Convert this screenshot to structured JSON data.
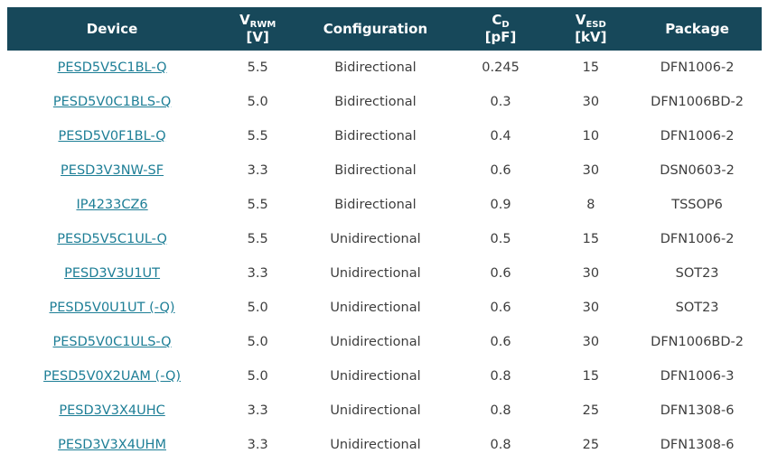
{
  "colors": {
    "header_bg": "#17485a",
    "header_text": "#ffffff",
    "link": "#1d7e96",
    "body_text": "#3d3d3d",
    "row_bg": "#ffffff"
  },
  "table": {
    "columns": {
      "device": {
        "label": "Device"
      },
      "vrwm": {
        "symbol": "V",
        "sub": "RWM",
        "unit": "[V]"
      },
      "configuration": {
        "label": "Configuration"
      },
      "cd": {
        "symbol": "C",
        "sub": "D",
        "unit": "[pF]"
      },
      "vesd": {
        "symbol": "V",
        "sub": "ESD",
        "unit": "[kV]"
      },
      "package": {
        "label": "Package"
      }
    },
    "rows": [
      {
        "device": "PESD5V5C1BL-Q",
        "vrwm": "5.5",
        "configuration": "Bidirectional",
        "cd": "0.245",
        "vesd": "15",
        "package": "DFN1006-2"
      },
      {
        "device": "PESD5V0C1BLS-Q",
        "vrwm": "5.0",
        "configuration": "Bidirectional",
        "cd": "0.3",
        "vesd": "30",
        "package": "DFN1006BD-2"
      },
      {
        "device": "PESD5V0F1BL-Q",
        "vrwm": "5.5",
        "configuration": "Bidirectional",
        "cd": "0.4",
        "vesd": "10",
        "package": "DFN1006-2"
      },
      {
        "device": "PESD3V3NW-SF",
        "vrwm": "3.3",
        "configuration": "Bidirectional",
        "cd": "0.6",
        "vesd": "30",
        "package": "DSN0603-2"
      },
      {
        "device": "IP4233CZ6",
        "vrwm": "5.5",
        "configuration": "Bidirectional",
        "cd": "0.9",
        "vesd": "8",
        "package": "TSSOP6"
      },
      {
        "device": "PESD5V5C1UL-Q",
        "vrwm": "5.5",
        "configuration": "Unidirectional",
        "cd": "0.5",
        "vesd": "15",
        "package": "DFN1006-2"
      },
      {
        "device": "PESD3V3U1UT",
        "vrwm": "3.3",
        "configuration": "Unidirectional",
        "cd": "0.6",
        "vesd": "30",
        "package": "SOT23"
      },
      {
        "device": "PESD5V0U1UT (-Q)",
        "vrwm": "5.0",
        "configuration": "Unidirectional",
        "cd": "0.6",
        "vesd": "30",
        "package": "SOT23"
      },
      {
        "device": "PESD5V0C1ULS-Q",
        "vrwm": "5.0",
        "configuration": "Unidirectional",
        "cd": "0.6",
        "vesd": "30",
        "package": "DFN1006BD-2"
      },
      {
        "device": "PESD5V0X2UAM (-Q)",
        "vrwm": "5.0",
        "configuration": "Unidirectional",
        "cd": "0.8",
        "vesd": "15",
        "package": "DFN1006-3"
      },
      {
        "device": "PESD3V3X4UHC",
        "vrwm": "3.3",
        "configuration": "Unidirectional",
        "cd": "0.8",
        "vesd": "25",
        "package": "DFN1308-6"
      },
      {
        "device": "PESD3V3X4UHM",
        "vrwm": "3.3",
        "configuration": "Unidirectional",
        "cd": "0.8",
        "vesd": "25",
        "package": "DFN1308-6"
      }
    ]
  }
}
